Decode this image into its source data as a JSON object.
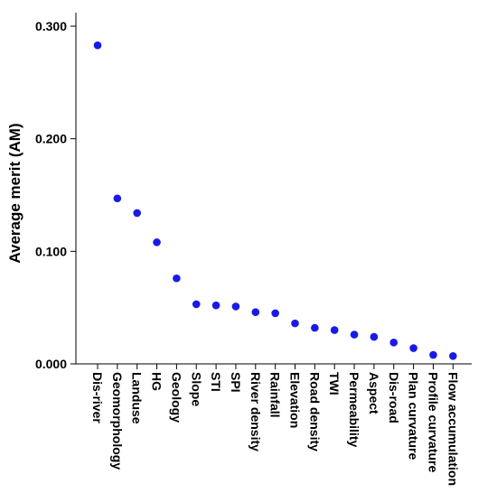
{
  "chart_data": {
    "type": "scatter",
    "title": "",
    "xlabel": "",
    "ylabel": "Average merit (AM)",
    "ylim": [
      0,
      0.3
    ],
    "yticks": [
      "0.000",
      "0.100",
      "0.200",
      "0.300"
    ],
    "grid": false,
    "legend": "none",
    "point_color": "#1a1ae6",
    "categories": [
      "Dis-river",
      "Geomorphology",
      "Landuse",
      "HG",
      "Geology",
      "Slope",
      "STI",
      "SPI",
      "River density",
      "Rainfall",
      "Elevation",
      "Road density",
      "TWI",
      "Permeability",
      "Aspect",
      "Dis-road",
      "Plan curvature",
      "Profile curvature",
      "Flow accumulation"
    ],
    "values": [
      0.283,
      0.147,
      0.134,
      0.108,
      0.076,
      0.053,
      0.052,
      0.051,
      0.046,
      0.045,
      0.036,
      0.032,
      0.03,
      0.026,
      0.024,
      0.019,
      0.014,
      0.008,
      0.007
    ]
  }
}
